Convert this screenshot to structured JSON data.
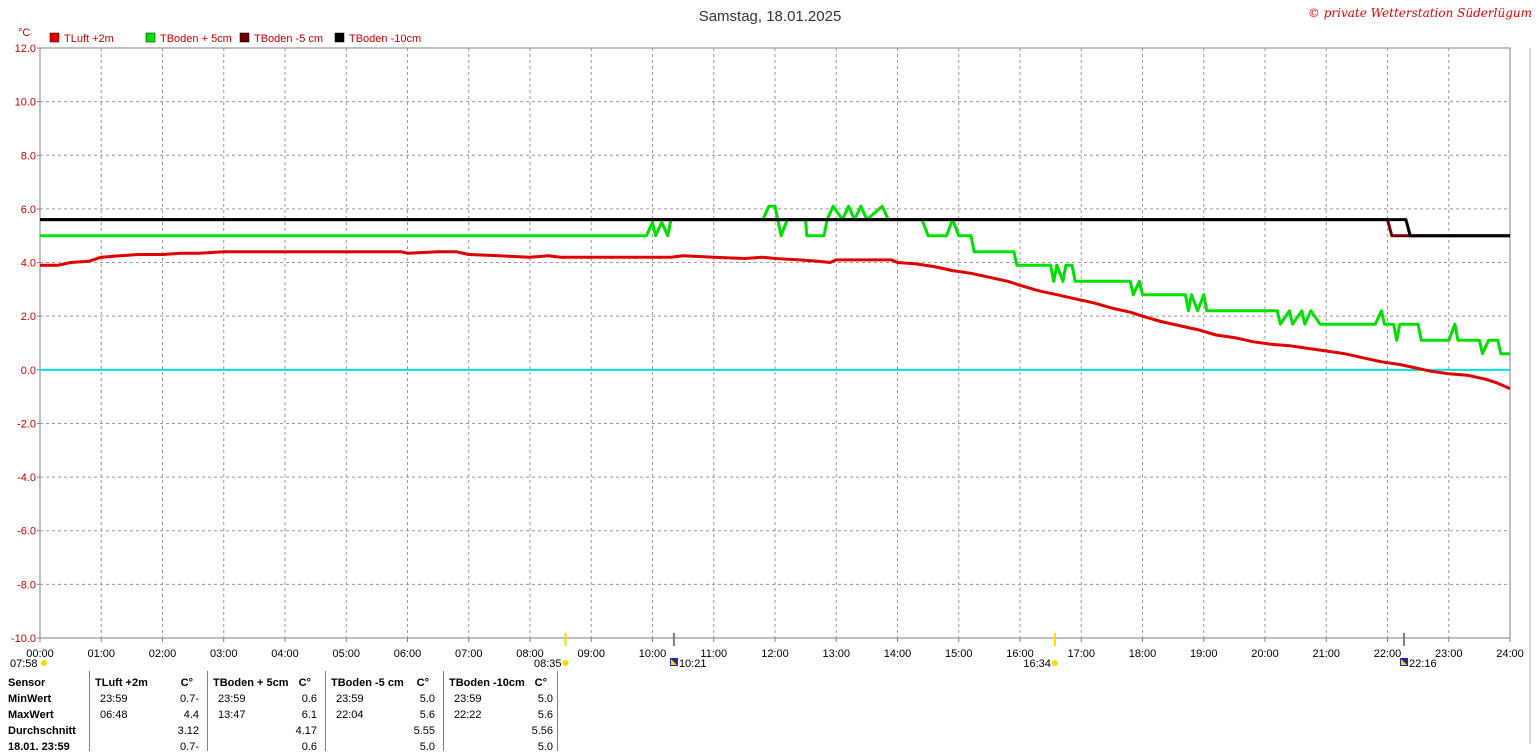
{
  "chart_data": {
    "type": "line",
    "title": "Samstag, 18.01.2025",
    "credit": "© private Wetterstation Süderlügum",
    "unit": "°C",
    "ylim": [
      -10,
      12
    ],
    "y_ticks": [
      "12.0",
      "10.0",
      "8.0",
      "6.0",
      "4.0",
      "2.0",
      "0.0",
      "-2.0",
      "-4.0",
      "-6.0",
      "-8.0",
      "-10.0"
    ],
    "x_ticks": [
      "00:00",
      "01:00",
      "02:00",
      "03:00",
      "04:00",
      "05:00",
      "06:00",
      "07:00",
      "08:00",
      "09:00",
      "10:00",
      "11:00",
      "12:00",
      "13:00",
      "14:00",
      "15:00",
      "16:00",
      "17:00",
      "18:00",
      "19:00",
      "20:00",
      "21:00",
      "22:00",
      "23:00",
      "24:00"
    ],
    "grid": true,
    "legend_position": "top-left",
    "reference_line": {
      "y": 0.0,
      "color": "#00e0e0"
    },
    "markers": [
      {
        "label": "07:58",
        "hour": 7.97,
        "kind": "sunrise"
      },
      {
        "label": "08:35",
        "hour": 8.58,
        "kind": "sun"
      },
      {
        "label": "10:21",
        "hour": 10.35,
        "kind": "moon"
      },
      {
        "label": "16:34",
        "hour": 16.57,
        "kind": "sun"
      },
      {
        "label": "22:16",
        "hour": 22.27,
        "kind": "moon"
      }
    ],
    "series": [
      {
        "name": "TLuft +2m",
        "color": "#e00000",
        "points": [
          [
            0,
            3.9
          ],
          [
            0.3,
            3.9
          ],
          [
            0.5,
            4.0
          ],
          [
            0.8,
            4.05
          ],
          [
            1.0,
            4.2
          ],
          [
            1.3,
            4.25
          ],
          [
            1.6,
            4.3
          ],
          [
            2.0,
            4.3
          ],
          [
            2.3,
            4.35
          ],
          [
            2.6,
            4.35
          ],
          [
            3.0,
            4.4
          ],
          [
            3.5,
            4.4
          ],
          [
            4.0,
            4.4
          ],
          [
            5.0,
            4.4
          ],
          [
            5.9,
            4.4
          ],
          [
            6.0,
            4.35
          ],
          [
            6.5,
            4.4
          ],
          [
            6.8,
            4.4
          ],
          [
            7.0,
            4.3
          ],
          [
            7.5,
            4.25
          ],
          [
            8.0,
            4.2
          ],
          [
            8.3,
            4.25
          ],
          [
            8.5,
            4.2
          ],
          [
            9.0,
            4.2
          ],
          [
            9.5,
            4.2
          ],
          [
            10.0,
            4.2
          ],
          [
            10.3,
            4.2
          ],
          [
            10.5,
            4.25
          ],
          [
            11.0,
            4.2
          ],
          [
            11.5,
            4.15
          ],
          [
            11.8,
            4.2
          ],
          [
            12.0,
            4.15
          ],
          [
            12.4,
            4.1
          ],
          [
            12.7,
            4.05
          ],
          [
            12.9,
            4.0
          ],
          [
            13.0,
            4.1
          ],
          [
            13.5,
            4.1
          ],
          [
            13.9,
            4.1
          ],
          [
            14.0,
            4.0
          ],
          [
            14.3,
            3.95
          ],
          [
            14.6,
            3.85
          ],
          [
            14.9,
            3.7
          ],
          [
            15.2,
            3.6
          ],
          [
            15.5,
            3.45
          ],
          [
            15.8,
            3.3
          ],
          [
            16.0,
            3.15
          ],
          [
            16.3,
            2.95
          ],
          [
            16.6,
            2.8
          ],
          [
            16.9,
            2.65
          ],
          [
            17.2,
            2.5
          ],
          [
            17.5,
            2.3
          ],
          [
            17.8,
            2.15
          ],
          [
            18.0,
            2.0
          ],
          [
            18.3,
            1.8
          ],
          [
            18.6,
            1.65
          ],
          [
            18.9,
            1.5
          ],
          [
            19.2,
            1.3
          ],
          [
            19.5,
            1.2
          ],
          [
            19.8,
            1.05
          ],
          [
            20.1,
            0.95
          ],
          [
            20.4,
            0.9
          ],
          [
            20.7,
            0.8
          ],
          [
            21.0,
            0.7
          ],
          [
            21.3,
            0.6
          ],
          [
            21.6,
            0.45
          ],
          [
            21.9,
            0.3
          ],
          [
            22.2,
            0.2
          ],
          [
            22.4,
            0.1
          ],
          [
            22.7,
            -0.05
          ],
          [
            23.0,
            -0.15
          ],
          [
            23.3,
            -0.2
          ],
          [
            23.6,
            -0.35
          ],
          [
            23.8,
            -0.5
          ],
          [
            24.0,
            -0.7
          ]
        ]
      },
      {
        "name": "TBoden + 5cm",
        "color": "#00e000",
        "points": [
          [
            0,
            5.0
          ],
          [
            9.9,
            5.0
          ],
          [
            10.0,
            5.5
          ],
          [
            10.05,
            5.0
          ],
          [
            10.15,
            5.5
          ],
          [
            10.25,
            5.0
          ],
          [
            10.3,
            5.6
          ],
          [
            11.8,
            5.6
          ],
          [
            11.9,
            6.1
          ],
          [
            12.0,
            6.1
          ],
          [
            12.1,
            5.0
          ],
          [
            12.2,
            5.6
          ],
          [
            12.5,
            5.6
          ],
          [
            12.52,
            5.0
          ],
          [
            12.8,
            5.0
          ],
          [
            12.85,
            5.6
          ],
          [
            12.95,
            6.1
          ],
          [
            13.1,
            5.6
          ],
          [
            13.2,
            6.1
          ],
          [
            13.3,
            5.6
          ],
          [
            13.4,
            6.1
          ],
          [
            13.5,
            5.6
          ],
          [
            13.75,
            6.1
          ],
          [
            13.85,
            5.6
          ],
          [
            14.4,
            5.6
          ],
          [
            14.5,
            5.0
          ],
          [
            14.8,
            5.0
          ],
          [
            14.9,
            5.6
          ],
          [
            15.0,
            5.0
          ],
          [
            15.2,
            5.0
          ],
          [
            15.25,
            4.4
          ],
          [
            15.9,
            4.4
          ],
          [
            15.95,
            3.9
          ],
          [
            16.5,
            3.9
          ],
          [
            16.55,
            3.3
          ],
          [
            16.6,
            3.9
          ],
          [
            16.7,
            3.3
          ],
          [
            16.75,
            3.9
          ],
          [
            16.85,
            3.9
          ],
          [
            16.9,
            3.3
          ],
          [
            17.8,
            3.3
          ],
          [
            17.85,
            2.8
          ],
          [
            17.95,
            3.3
          ],
          [
            18.0,
            2.8
          ],
          [
            18.7,
            2.8
          ],
          [
            18.75,
            2.2
          ],
          [
            18.8,
            2.8
          ],
          [
            18.9,
            2.2
          ],
          [
            19.0,
            2.8
          ],
          [
            19.05,
            2.2
          ],
          [
            20.2,
            2.2
          ],
          [
            20.25,
            1.7
          ],
          [
            20.4,
            2.2
          ],
          [
            20.45,
            1.7
          ],
          [
            20.6,
            2.2
          ],
          [
            20.65,
            1.7
          ],
          [
            20.75,
            2.2
          ],
          [
            20.9,
            1.7
          ],
          [
            21.8,
            1.7
          ],
          [
            21.9,
            2.2
          ],
          [
            21.95,
            1.7
          ],
          [
            22.1,
            1.7
          ],
          [
            22.15,
            1.1
          ],
          [
            22.2,
            1.7
          ],
          [
            22.5,
            1.7
          ],
          [
            22.55,
            1.1
          ],
          [
            23.0,
            1.1
          ],
          [
            23.1,
            1.7
          ],
          [
            23.15,
            1.1
          ],
          [
            23.5,
            1.1
          ],
          [
            23.55,
            0.6
          ],
          [
            23.65,
            1.1
          ],
          [
            23.8,
            1.1
          ],
          [
            23.85,
            0.6
          ],
          [
            24.0,
            0.6
          ]
        ]
      },
      {
        "name": "TBoden -5 cm",
        "color": "#700000",
        "points": [
          [
            0,
            5.6
          ],
          [
            22.0,
            5.6
          ],
          [
            22.07,
            5.0
          ],
          [
            24.0,
            5.0
          ]
        ]
      },
      {
        "name": "TBoden -10cm",
        "color": "#000000",
        "points": [
          [
            0,
            5.6
          ],
          [
            22.3,
            5.6
          ],
          [
            22.37,
            5.0
          ],
          [
            24.0,
            5.0
          ]
        ]
      }
    ]
  },
  "table": {
    "sensor_header": "Sensor",
    "row_labels": [
      "MinWert",
      "MaxWert",
      "Durchschnitt",
      "18.01. 23:59"
    ],
    "columns": [
      {
        "name": "TLuft +2m",
        "unit": "°C",
        "min_time": "23:59",
        "min_val": "-0.7",
        "max_time": "06:48",
        "max_val": "4.4",
        "avg": "3.12",
        "last": "-0.7"
      },
      {
        "name": "TBoden + 5cm",
        "unit": "°C",
        "min_time": "23:59",
        "min_val": "0.6",
        "max_time": "13:47",
        "max_val": "6.1",
        "avg": "4.17",
        "last": "0.6"
      },
      {
        "name": "TBoden -5 cm",
        "unit": "°C",
        "min_time": "23:59",
        "min_val": "5.0",
        "max_time": "22:04",
        "max_val": "5.6",
        "avg": "5.55",
        "last": "5.0"
      },
      {
        "name": "TBoden -10cm",
        "unit": "°C",
        "min_time": "23:59",
        "min_val": "5.0",
        "max_time": "22:22",
        "max_val": "5.6",
        "avg": "5.56",
        "last": "5.0"
      }
    ]
  }
}
